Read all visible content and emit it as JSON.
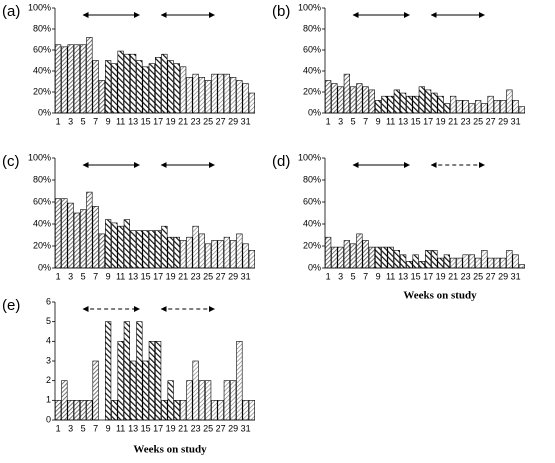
{
  "chart_data": [
    {
      "type": "bar",
      "label": "(a)",
      "categories": [
        "1",
        null,
        "3",
        null,
        "5",
        null,
        "7",
        null,
        "9",
        null,
        "11",
        null,
        "13",
        null,
        "15",
        null,
        "17",
        null,
        "19",
        null,
        "21",
        null,
        "23",
        null,
        "25",
        null,
        "27",
        null,
        "29",
        null,
        "31",
        null
      ],
      "values": [
        65,
        63,
        65,
        65,
        65,
        72,
        50,
        31,
        50,
        47,
        59,
        56,
        56,
        50,
        44,
        47,
        53,
        56,
        50,
        47,
        44,
        34,
        37,
        34,
        31,
        37,
        37,
        37,
        34,
        31,
        28,
        19
      ],
      "ylim": [
        0,
        100
      ],
      "yticks": [
        {
          "value": 0,
          "label": "0%"
        },
        {
          "value": 20,
          "label": "20%"
        },
        {
          "value": 40,
          "label": "40%"
        },
        {
          "value": 60,
          "label": "60%"
        },
        {
          "value": 80,
          "label": "80%"
        },
        {
          "value": 100,
          "label": "100%"
        }
      ]
    },
    {
      "type": "bar",
      "label": "(b)",
      "categories": [
        "1",
        null,
        "3",
        null,
        "5",
        null,
        "7",
        null,
        "9",
        null,
        "11",
        null,
        "13",
        null,
        "15",
        null,
        "17",
        null,
        "19",
        null,
        "21",
        null,
        "23",
        null,
        "25",
        null,
        "27",
        null,
        "29",
        null,
        "31",
        null
      ],
      "values": [
        31,
        28,
        25,
        37,
        25,
        28,
        25,
        22,
        12,
        16,
        16,
        22,
        19,
        16,
        16,
        25,
        22,
        19,
        16,
        9,
        16,
        12,
        12,
        9,
        12,
        9,
        16,
        12,
        12,
        22,
        12,
        6
      ],
      "ylim": [
        0,
        100
      ],
      "yticks": [
        {
          "value": 0,
          "label": "0%"
        },
        {
          "value": 20,
          "label": "20%"
        },
        {
          "value": 40,
          "label": "40%"
        },
        {
          "value": 60,
          "label": "60%"
        },
        {
          "value": 80,
          "label": "80%"
        },
        {
          "value": 100,
          "label": "100%"
        }
      ]
    },
    {
      "type": "bar",
      "label": "(c)",
      "categories": [
        "1",
        null,
        "3",
        null,
        "5",
        null,
        "7",
        null,
        "9",
        null,
        "11",
        null,
        "13",
        null,
        "15",
        null,
        "17",
        null,
        "19",
        null,
        "21",
        null,
        "23",
        null,
        "25",
        null,
        "27",
        null,
        "29",
        null,
        "31",
        null
      ],
      "values": [
        63,
        63,
        59,
        50,
        53,
        69,
        56,
        31,
        44,
        41,
        38,
        44,
        34,
        34,
        34,
        34,
        34,
        38,
        28,
        28,
        25,
        28,
        38,
        31,
        22,
        25,
        25,
        28,
        25,
        31,
        22,
        16
      ],
      "ylim": [
        0,
        100
      ],
      "yticks": [
        {
          "value": 0,
          "label": "0%"
        },
        {
          "value": 20,
          "label": "20%"
        },
        {
          "value": 40,
          "label": "40%"
        },
        {
          "value": 60,
          "label": "60%"
        },
        {
          "value": 80,
          "label": "80%"
        },
        {
          "value": 100,
          "label": "100%"
        }
      ]
    },
    {
      "type": "bar",
      "label": "(d)",
      "xlabel": "Weeks on study",
      "categories": [
        "1",
        null,
        "3",
        null,
        "5",
        null,
        "7",
        null,
        "9",
        null,
        "11",
        null,
        "13",
        null,
        "15",
        null,
        "17",
        null,
        "19",
        null,
        "21",
        null,
        "23",
        null,
        "25",
        null,
        "27",
        null,
        "29",
        null,
        "31",
        null
      ],
      "values": [
        28,
        19,
        19,
        25,
        22,
        31,
        25,
        19,
        19,
        19,
        19,
        16,
        12,
        6,
        12,
        6,
        16,
        16,
        9,
        12,
        9,
        9,
        12,
        12,
        9,
        16,
        9,
        9,
        9,
        16,
        12,
        3
      ],
      "ylim": [
        0,
        100
      ],
      "yticks": [
        {
          "value": 0,
          "label": "0%"
        },
        {
          "value": 20,
          "label": "20%"
        },
        {
          "value": 40,
          "label": "40%"
        },
        {
          "value": 60,
          "label": "60%"
        },
        {
          "value": 80,
          "label": "80%"
        },
        {
          "value": 100,
          "label": "100%"
        }
      ]
    },
    {
      "type": "bar",
      "label": "(e)",
      "xlabel": "Weeks on study",
      "categories": [
        "1",
        null,
        "3",
        null,
        "5",
        null,
        "7",
        null,
        "9",
        null,
        "11",
        null,
        "13",
        null,
        "15",
        null,
        "17",
        null,
        "19",
        null,
        "21",
        null,
        "23",
        null,
        "25",
        null,
        "27",
        null,
        "29",
        null,
        "31",
        null
      ],
      "values": [
        1,
        2,
        1,
        1,
        1,
        1,
        3,
        0,
        5,
        1,
        4,
        5,
        3,
        5,
        3,
        4,
        4,
        1,
        2,
        1,
        1,
        2,
        3,
        2,
        2,
        1,
        1,
        2,
        2,
        4,
        1,
        1
      ],
      "ylim": [
        0,
        6
      ],
      "yticks": [
        0,
        1,
        2,
        3,
        4,
        5,
        6
      ]
    }
  ]
}
